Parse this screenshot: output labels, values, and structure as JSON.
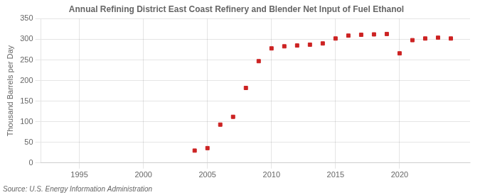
{
  "chart_data": {
    "type": "scatter",
    "title": "Annual Refining District East Coast Refinery and Blender Net Input of Fuel Ethanol",
    "y_label": "Thousand Barrels per Day",
    "annotations": [
      "Source: U.S. Energy Information Administration"
    ],
    "x": [
      2004,
      2005,
      2006,
      2007,
      2008,
      2009,
      2010,
      2011,
      2012,
      2013,
      2014,
      2015,
      2016,
      2017,
      2018,
      2019,
      2020,
      2021,
      2022,
      2023,
      2024
    ],
    "values": [
      30,
      36,
      93,
      112,
      182,
      247,
      278,
      283,
      285,
      287,
      290,
      302,
      309,
      311,
      312,
      313,
      266,
      298,
      302,
      304,
      302
    ],
    "color": "#cc2222",
    "marker": "square",
    "xlim": [
      1992,
      2025.5
    ],
    "xticks": [
      1995,
      2000,
      2005,
      2010,
      2015,
      2020
    ],
    "ylim": [
      0,
      350
    ],
    "yticks": [
      0,
      50,
      100,
      150,
      200,
      250,
      300,
      350
    ],
    "grid": true
  }
}
